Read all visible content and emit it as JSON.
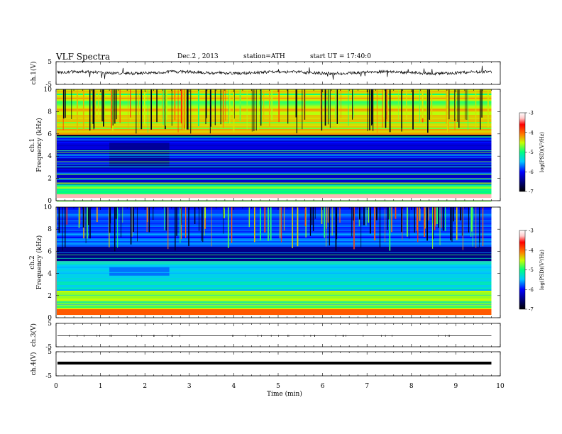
{
  "header": {
    "title": "VLF  Spectra",
    "date": "Dec.2  , 2013",
    "station": "station=ATH",
    "start_ut": "start  UT  =    17:40:0"
  },
  "chart_data": [
    {
      "type": "line",
      "ylabel": "ch.1(V)",
      "ylim": [
        -5,
        5
      ],
      "yticks": [
        "5",
        "-5"
      ],
      "xlim": [
        0,
        10
      ],
      "description_level": 0.2
    },
    {
      "type": "heatmap",
      "ylabel": "ch.1\nFrequency  (kHz)",
      "ylabel_line1": "ch.1",
      "ylabel_line2": "Frequency  (kHz)",
      "ylim": [
        0,
        10
      ],
      "yticks": [
        "0",
        "2",
        "4",
        "6",
        "8",
        "10"
      ],
      "xlim": [
        0,
        10
      ],
      "data_end_min": 9.8,
      "colorbar": {
        "label": "log(PSD)(V²/Hz)",
        "range": [
          -7,
          -3
        ],
        "ticks": [
          "-3",
          "-4",
          "-5",
          "-6",
          "-7"
        ]
      }
    },
    {
      "type": "heatmap",
      "ylabel": "ch.2\nFrequency  (kHz)",
      "ylabel_line1": "ch.2",
      "ylabel_line2": "Frequency  (kHz)",
      "ylim": [
        0,
        10
      ],
      "yticks": [
        "0",
        "2",
        "4",
        "6",
        "8",
        "10"
      ],
      "xlim": [
        0,
        10
      ],
      "data_end_min": 9.8,
      "colorbar": {
        "label": "log(PSD)(V²/Hz)",
        "range": [
          -7,
          -3
        ],
        "ticks": [
          "-3",
          "-4",
          "-5",
          "-6",
          "-7"
        ]
      }
    },
    {
      "type": "line",
      "ylabel": "ch.3(V)",
      "ylim": [
        -5,
        5
      ],
      "yticks": [
        "5",
        "-5"
      ],
      "xlim": [
        0,
        10
      ]
    },
    {
      "type": "line",
      "ylabel": "ch.4(V)",
      "ylim": [
        -5,
        5
      ],
      "yticks": [
        "5",
        "-5"
      ],
      "xlim": [
        0,
        10
      ]
    }
  ],
  "xaxis": {
    "label": "Time  (min)",
    "ticks": [
      "0",
      "1",
      "2",
      "3",
      "4",
      "5",
      "6",
      "7",
      "8",
      "9",
      "10"
    ]
  },
  "colors": {
    "line": "#000000",
    "colormap": [
      "#000000",
      "#00007a",
      "#0000ff",
      "#00c8ff",
      "#00ff80",
      "#c8ff00",
      "#ff8000",
      "#ff0000",
      "#ffc8c8",
      "#ffffff"
    ]
  }
}
